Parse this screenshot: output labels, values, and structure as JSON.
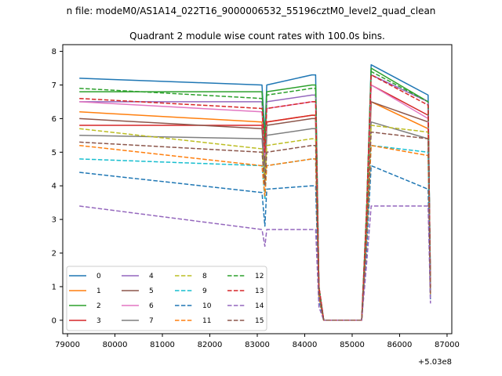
{
  "chart_data": {
    "type": "line",
    "suptitle": "n file: modeM0/AS1A14_022T16_9000006532_55196cztM0_level2_quad_clean",
    "title": "Quadrant 2 module wise count rates with 100.0s bins.",
    "xlabel": "",
    "ylabel": "",
    "x_offset_label": "+5.03e8",
    "xlim": [
      78900,
      87100
    ],
    "ylim": [
      -0.4,
      8.2
    ],
    "x_ticks": [
      79000,
      80000,
      81000,
      82000,
      83000,
      84000,
      85000,
      86000,
      87000
    ],
    "x_tick_labels": [
      "79000",
      "80000",
      "81000",
      "82000",
      "83000",
      "84000",
      "85000",
      "86000",
      "87000"
    ],
    "y_ticks": [
      0,
      1,
      2,
      3,
      4,
      5,
      6,
      7,
      8
    ],
    "y_tick_labels": [
      "0",
      "1",
      "2",
      "3",
      "4",
      "5",
      "6",
      "7",
      "8"
    ],
    "legend_position": "lower-left",
    "legend_columns": 4,
    "series": [
      {
        "name": "0",
        "color": "#1f77b4",
        "dash": "solid",
        "x": [
          79250,
          83100,
          83160,
          83200,
          84150,
          84230,
          84300,
          84400,
          85200,
          85300,
          85400,
          86600,
          86650
        ],
        "values": [
          7.2,
          7.0,
          5.5,
          7.0,
          7.3,
          7.3,
          1.0,
          0.0,
          0.0,
          3.0,
          7.6,
          6.7,
          1.0
        ]
      },
      {
        "name": "1",
        "color": "#ff7f0e",
        "dash": "solid",
        "x": [
          79250,
          83100,
          83160,
          83200,
          84150,
          84230,
          84300,
          84400,
          85200,
          85300,
          85400,
          86600,
          86650
        ],
        "values": [
          6.2,
          5.9,
          4.6,
          5.9,
          6.1,
          6.1,
          0.9,
          0.0,
          0.0,
          2.5,
          6.5,
          5.7,
          0.9
        ]
      },
      {
        "name": "2",
        "color": "#2ca02c",
        "dash": "solid",
        "x": [
          79250,
          83100,
          83160,
          83200,
          84150,
          84230,
          84300,
          84400,
          85200,
          85300,
          85400,
          86600,
          86650
        ],
        "values": [
          6.8,
          6.8,
          5.3,
          6.8,
          7.0,
          7.0,
          1.0,
          0.0,
          0.0,
          2.9,
          7.5,
          6.5,
          1.0
        ]
      },
      {
        "name": "3",
        "color": "#d62728",
        "dash": "solid",
        "x": [
          79250,
          83100,
          83160,
          83200,
          84150,
          84230,
          84300,
          84400,
          85200,
          85300,
          85400,
          86600,
          86650
        ],
        "values": [
          5.8,
          5.8,
          4.6,
          5.9,
          6.1,
          6.1,
          0.9,
          0.0,
          0.0,
          2.7,
          7.0,
          6.1,
          0.9
        ]
      },
      {
        "name": "4",
        "color": "#9467bd",
        "dash": "solid",
        "x": [
          79250,
          83100,
          83160,
          83200,
          84150,
          84230,
          84300,
          84400,
          85200,
          85300,
          85400,
          86600,
          86650
        ],
        "values": [
          6.5,
          6.5,
          5.1,
          6.5,
          6.7,
          6.7,
          1.0,
          0.0,
          0.0,
          3.0,
          7.3,
          6.5,
          1.0
        ]
      },
      {
        "name": "5",
        "color": "#8c564b",
        "dash": "solid",
        "x": [
          79250,
          83100,
          83160,
          83200,
          84150,
          84230,
          84300,
          84400,
          85200,
          85300,
          85400,
          86600,
          86650
        ],
        "values": [
          6.0,
          5.7,
          4.5,
          5.8,
          6.0,
          6.0,
          0.9,
          0.0,
          0.0,
          2.6,
          6.5,
          5.9,
          0.9
        ]
      },
      {
        "name": "6",
        "color": "#e377c2",
        "dash": "solid",
        "x": [
          79250,
          83100,
          83160,
          83200,
          84150,
          84230,
          84300,
          84400,
          85200,
          85300,
          85400,
          86600,
          86650
        ],
        "values": [
          6.5,
          6.2,
          4.9,
          6.3,
          6.5,
          6.5,
          1.0,
          0.0,
          0.0,
          2.8,
          7.0,
          6.0,
          1.0
        ]
      },
      {
        "name": "7",
        "color": "#7f7f7f",
        "dash": "solid",
        "x": [
          79250,
          83100,
          83160,
          83200,
          84150,
          84230,
          84300,
          84400,
          85200,
          85300,
          85400,
          86600,
          86650
        ],
        "values": [
          5.5,
          5.4,
          4.3,
          5.5,
          5.7,
          5.7,
          0.8,
          0.0,
          0.0,
          2.4,
          5.9,
          5.4,
          0.8
        ]
      },
      {
        "name": "8",
        "color": "#bcbd22",
        "dash": "dashed",
        "x": [
          79250,
          83100,
          83160,
          83200,
          84150,
          84230,
          84300,
          84400,
          85200,
          85300,
          85400,
          86600,
          86650
        ],
        "values": [
          5.7,
          5.1,
          4.1,
          5.2,
          5.4,
          5.4,
          0.8,
          0.0,
          0.0,
          2.5,
          5.8,
          5.6,
          0.8
        ]
      },
      {
        "name": "9",
        "color": "#17becf",
        "dash": "dashed",
        "x": [
          79250,
          83100,
          83160,
          83200,
          84150,
          84230,
          84300,
          84400,
          85200,
          85300,
          85400,
          86600,
          86650
        ],
        "values": [
          4.8,
          4.6,
          3.6,
          4.6,
          4.8,
          4.8,
          0.7,
          0.0,
          0.0,
          2.2,
          5.2,
          5.0,
          0.7
        ]
      },
      {
        "name": "10",
        "color": "#1f77b4",
        "dash": "dashed",
        "x": [
          79250,
          83100,
          83160,
          83200,
          84150,
          84230,
          84300,
          84400,
          85200,
          85300,
          85400,
          86600,
          86650
        ],
        "values": [
          4.4,
          3.8,
          2.8,
          3.9,
          4.0,
          4.0,
          0.6,
          0.0,
          0.0,
          2.0,
          4.6,
          3.9,
          0.6
        ]
      },
      {
        "name": "11",
        "color": "#ff7f0e",
        "dash": "dashed",
        "x": [
          79250,
          83100,
          83160,
          83200,
          84150,
          84230,
          84300,
          84400,
          85200,
          85300,
          85400,
          86600,
          86650
        ],
        "values": [
          5.2,
          4.6,
          3.7,
          4.6,
          4.8,
          4.8,
          0.7,
          0.0,
          0.0,
          2.3,
          5.2,
          4.9,
          0.7
        ]
      },
      {
        "name": "12",
        "color": "#2ca02c",
        "dash": "dashed",
        "x": [
          79250,
          83100,
          83160,
          83200,
          84150,
          84230,
          84300,
          84400,
          85200,
          85300,
          85400,
          86600,
          86650
        ],
        "values": [
          6.9,
          6.6,
          5.2,
          6.7,
          6.9,
          6.9,
          1.0,
          0.0,
          0.0,
          3.2,
          7.4,
          6.5,
          1.0
        ]
      },
      {
        "name": "13",
        "color": "#d62728",
        "dash": "dashed",
        "x": [
          79250,
          83100,
          83160,
          83200,
          84150,
          84230,
          84300,
          84400,
          85200,
          85300,
          85400,
          86600,
          86650
        ],
        "values": [
          6.6,
          6.3,
          5.0,
          6.3,
          6.5,
          6.5,
          1.0,
          0.0,
          0.0,
          3.1,
          7.3,
          6.4,
          1.0
        ]
      },
      {
        "name": "14",
        "color": "#9467bd",
        "dash": "dashed",
        "x": [
          79250,
          83100,
          83160,
          83200,
          84150,
          84230,
          84300,
          84400,
          85200,
          85300,
          85400,
          86600,
          86650
        ],
        "values": [
          3.4,
          2.7,
          2.2,
          2.7,
          2.7,
          2.7,
          0.4,
          0.0,
          0.0,
          1.6,
          3.4,
          3.4,
          0.5
        ]
      },
      {
        "name": "15",
        "color": "#8c564b",
        "dash": "dashed",
        "x": [
          79250,
          83100,
          83160,
          83200,
          84150,
          84230,
          84300,
          84400,
          85200,
          85300,
          85400,
          86600,
          86650
        ],
        "values": [
          5.3,
          5.0,
          4.0,
          5.0,
          5.2,
          5.2,
          0.8,
          0.0,
          0.0,
          2.5,
          5.6,
          5.4,
          0.8
        ]
      }
    ]
  }
}
